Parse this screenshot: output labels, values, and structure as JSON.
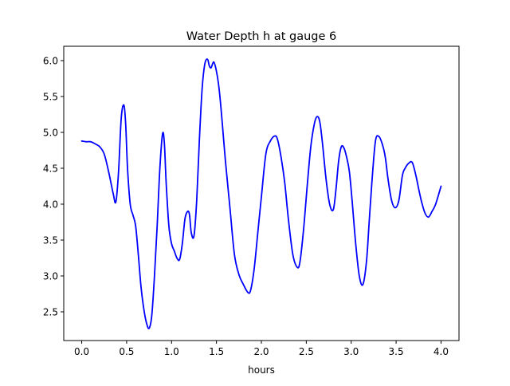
{
  "chart_data": {
    "type": "line",
    "title": "Water Depth h at gauge 6",
    "xlabel": "hours",
    "ylabel": "",
    "xlim": [
      -0.2,
      4.2
    ],
    "ylim": [
      2.1,
      6.2
    ],
    "xticks": [
      0.0,
      0.5,
      1.0,
      1.5,
      2.0,
      2.5,
      3.0,
      3.5,
      4.0
    ],
    "xtick_labels": [
      "0.0",
      "0.5",
      "1.0",
      "1.5",
      "2.0",
      "2.5",
      "3.0",
      "3.5",
      "4.0"
    ],
    "yticks": [
      2.5,
      3.0,
      3.5,
      4.0,
      4.5,
      5.0,
      5.5,
      6.0
    ],
    "ytick_labels": [
      "2.5",
      "3.0",
      "3.5",
      "4.0",
      "4.5",
      "5.0",
      "5.5",
      "6.0"
    ],
    "grid": false,
    "series": [
      {
        "color": "#0000ff",
        "x": [
          0.0,
          0.05,
          0.1,
          0.15,
          0.2,
          0.25,
          0.3,
          0.35,
          0.38,
          0.41,
          0.44,
          0.47,
          0.49,
          0.51,
          0.54,
          0.57,
          0.6,
          0.63,
          0.66,
          0.69,
          0.72,
          0.75,
          0.78,
          0.81,
          0.84,
          0.87,
          0.9,
          0.92,
          0.94,
          0.97,
          1.0,
          1.03,
          1.06,
          1.09,
          1.12,
          1.15,
          1.18,
          1.2,
          1.22,
          1.25,
          1.28,
          1.31,
          1.34,
          1.37,
          1.4,
          1.42,
          1.44,
          1.47,
          1.5,
          1.53,
          1.56,
          1.6,
          1.65,
          1.7,
          1.75,
          1.8,
          1.85,
          1.88,
          1.92,
          1.96,
          2.0,
          2.05,
          2.1,
          2.15,
          2.18,
          2.22,
          2.26,
          2.3,
          2.35,
          2.4,
          2.43,
          2.47,
          2.51,
          2.55,
          2.59,
          2.62,
          2.65,
          2.68,
          2.72,
          2.76,
          2.8,
          2.83,
          2.86,
          2.89,
          2.92,
          2.95,
          2.98,
          3.01,
          3.05,
          3.09,
          3.13,
          3.17,
          3.2,
          3.23,
          3.27,
          3.31,
          3.35,
          3.38,
          3.41,
          3.45,
          3.49,
          3.53,
          3.57,
          3.6,
          3.64,
          3.68,
          3.72,
          3.75,
          3.78,
          3.82,
          3.86,
          3.9,
          3.94,
          4.0
        ],
        "y": [
          4.88,
          4.87,
          4.87,
          4.84,
          4.8,
          4.7,
          4.45,
          4.15,
          4.03,
          4.45,
          5.2,
          5.38,
          5.1,
          4.5,
          4.0,
          3.85,
          3.7,
          3.3,
          2.85,
          2.55,
          2.35,
          2.27,
          2.45,
          3.0,
          3.7,
          4.5,
          4.98,
          4.85,
          4.3,
          3.7,
          3.45,
          3.35,
          3.25,
          3.23,
          3.45,
          3.8,
          3.9,
          3.85,
          3.6,
          3.56,
          4.05,
          4.9,
          5.6,
          5.95,
          6.02,
          5.93,
          5.9,
          5.98,
          5.85,
          5.6,
          5.2,
          4.6,
          3.95,
          3.3,
          3.02,
          2.88,
          2.77,
          2.8,
          3.1,
          3.6,
          4.1,
          4.7,
          4.88,
          4.95,
          4.9,
          4.65,
          4.3,
          3.8,
          3.3,
          3.12,
          3.2,
          3.65,
          4.25,
          4.8,
          5.12,
          5.22,
          5.15,
          4.85,
          4.35,
          4.0,
          3.92,
          4.2,
          4.6,
          4.8,
          4.78,
          4.65,
          4.45,
          4.05,
          3.45,
          3.0,
          2.88,
          3.2,
          3.75,
          4.3,
          4.88,
          4.94,
          4.82,
          4.65,
          4.35,
          4.05,
          3.95,
          4.05,
          4.4,
          4.5,
          4.57,
          4.58,
          4.4,
          4.22,
          4.05,
          3.88,
          3.82,
          3.9,
          4.0,
          4.25
        ]
      }
    ]
  }
}
